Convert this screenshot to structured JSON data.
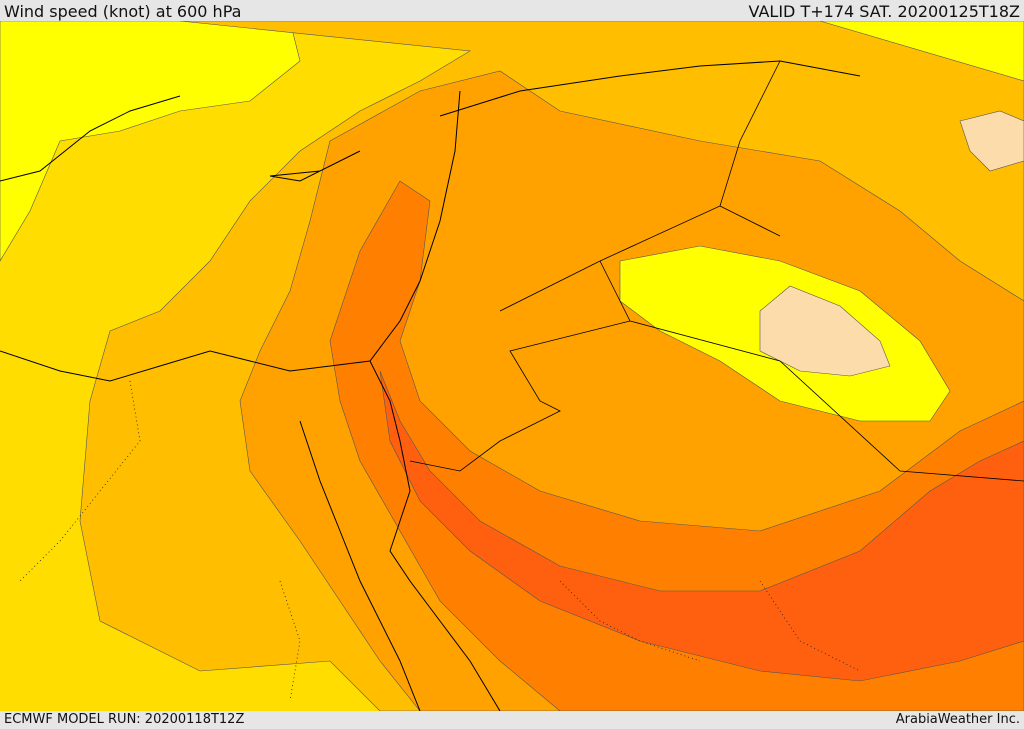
{
  "header": {
    "title": "Wind speed (knot) at 600 hPa",
    "valid": "VALID T+174 SAT. 20200125T18Z"
  },
  "footer": {
    "model_run": "ECMWF MODEL RUN: 20200118T12Z",
    "credit": "ArabiaWeather Inc."
  },
  "map": {
    "field": "wind-speed-600hpa",
    "colors": {
      "lightest": "#ffffff",
      "peach": "#fddcab",
      "yellow": "#ffff00",
      "gold": "#ffdd00",
      "amber": "#ffbf00",
      "orange_light": "#ffa200",
      "orange": "#ff8000",
      "orange_dark": "#ff6010",
      "coast": "#000000"
    }
  }
}
